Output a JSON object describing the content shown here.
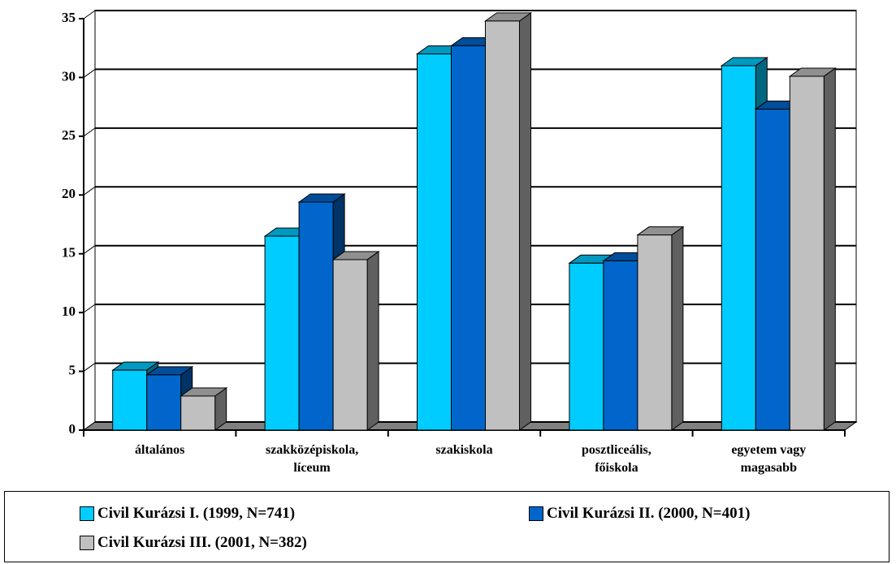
{
  "chart_data": {
    "type": "bar3d",
    "categories": [
      "általános",
      "szakközépiskola,\nlíceum",
      "szakiskola",
      "posztliceális,\nfőiskola",
      "egyetem vagy\nmagasabb"
    ],
    "series": [
      {
        "name": "Civil Kurázsi I. (1999, N=741)",
        "color": "#00ccff",
        "values": [
          5.1,
          16.5,
          32.0,
          14.2,
          31.0
        ]
      },
      {
        "name": "Civil Kurázsi II. (2000, N=401)",
        "color": "#0066cc",
        "values": [
          4.7,
          19.4,
          32.7,
          14.4,
          27.3
        ]
      },
      {
        "name": "Civil Kurázsi III. (2001, N=382)",
        "color": "#c0c0c0",
        "values": [
          2.9,
          14.5,
          34.8,
          16.6,
          30.1
        ]
      }
    ],
    "ylim": [
      0,
      35
    ],
    "yticks": [
      0,
      5,
      10,
      15,
      20,
      25,
      30,
      35
    ],
    "grid": true
  }
}
